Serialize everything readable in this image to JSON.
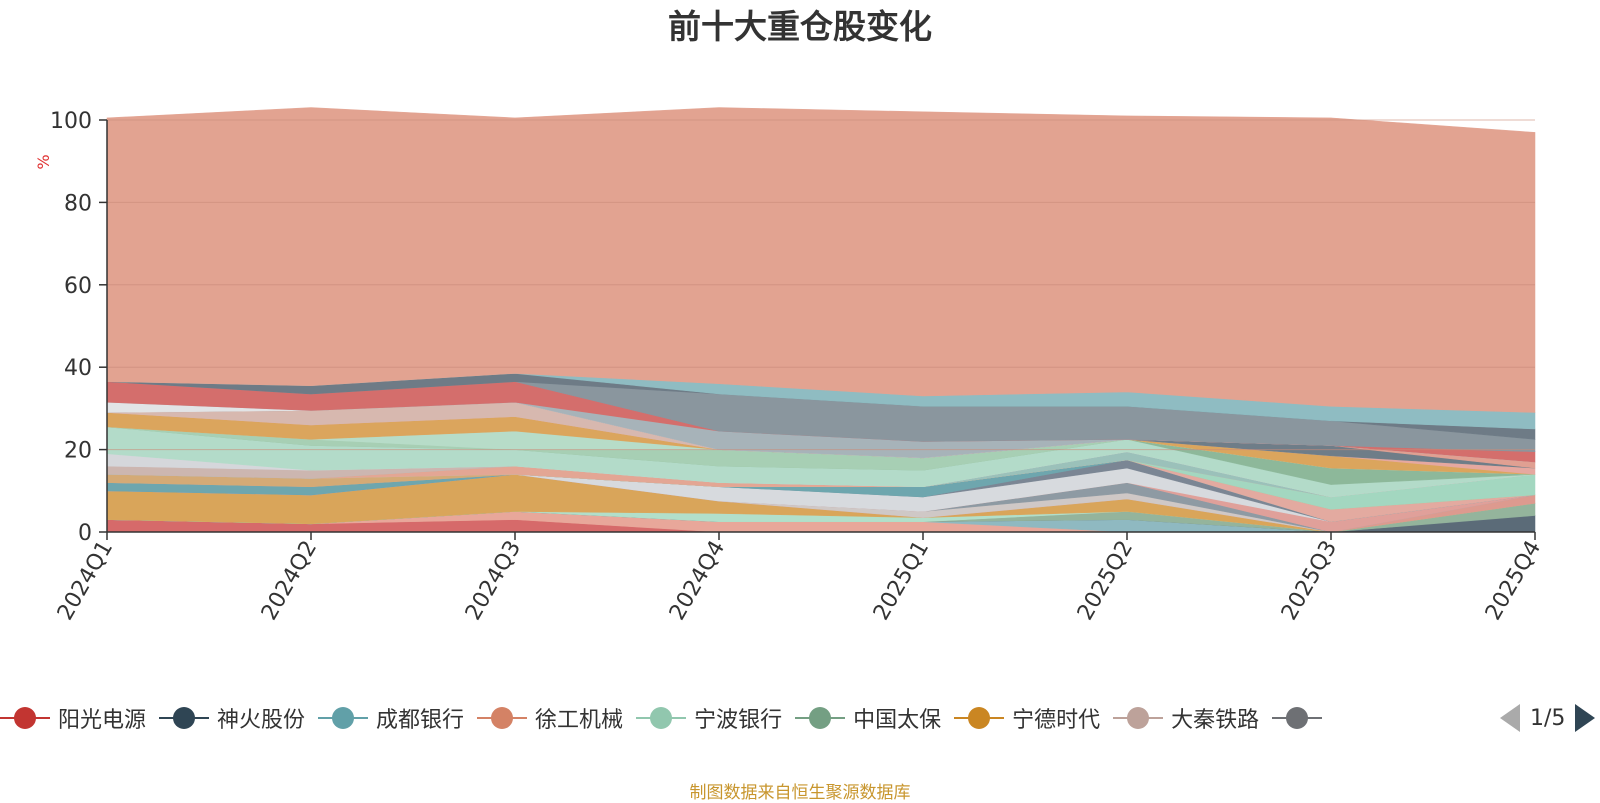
{
  "title": "前十大重仓股变化",
  "source_note": "制图数据来自恒生聚源数据库",
  "pager": {
    "text": "1/5"
  },
  "legend_items": [
    {
      "label": "阳光电源",
      "color": "#c23531"
    },
    {
      "label": "神火股份",
      "color": "#2f4554"
    },
    {
      "label": "成都银行",
      "color": "#61a0a8"
    },
    {
      "label": "徐工机械",
      "color": "#d48265"
    },
    {
      "label": "宁波银行",
      "color": "#91c7ae"
    },
    {
      "label": "中国太保",
      "color": "#749f83"
    },
    {
      "label": "宁德时代",
      "color": "#ca8622"
    },
    {
      "label": "大秦铁路",
      "color": "#bda29a"
    },
    {
      "label": "",
      "color": "#6e7074"
    }
  ],
  "chart_data": {
    "type": "area",
    "title": "前十大重仓股变化",
    "ylabel": "%",
    "ylim": [
      0,
      100
    ],
    "yticks": [
      0,
      20,
      40,
      60,
      80,
      100
    ],
    "x": [
      "2024Q1",
      "2024Q2",
      "2024Q3",
      "2024Q4",
      "2025Q1",
      "2025Q2",
      "2025Q3",
      "2025Q4"
    ],
    "grid": true,
    "legend_position": "bottom",
    "series": [
      {
        "name": "",
        "color": "#d66a6a",
        "values": [
          3.0,
          2.0,
          3.0,
          0.0,
          0.0,
          0.0,
          0.0,
          0.0
        ]
      },
      {
        "name": "",
        "color": "#e8a79a",
        "values": [
          0.0,
          0.0,
          2.0,
          2.5,
          2.5,
          0.0,
          0.0,
          0.0
        ]
      },
      {
        "name": "",
        "color": "#8fb9c1",
        "values": [
          0.0,
          0.0,
          0.0,
          0.0,
          0.0,
          3.0,
          0.0,
          0.0
        ]
      },
      {
        "name": "",
        "color": "#5b6b78",
        "values": [
          0.0,
          0.0,
          0.0,
          0.0,
          0.0,
          0.0,
          0.0,
          4.0
        ]
      },
      {
        "name": "",
        "color": "#94b49c",
        "values": [
          0.0,
          0.0,
          0.0,
          0.0,
          0.0,
          2.0,
          0.0,
          3.0
        ]
      },
      {
        "name": "",
        "color": "#b2dfca",
        "values": [
          0.0,
          0.0,
          0.0,
          2.0,
          1.0,
          0.0,
          0.0,
          0.0
        ]
      },
      {
        "name": "",
        "color": "#d9a55a",
        "values": [
          7.0,
          7.0,
          9.0,
          3.0,
          0.0,
          3.0,
          0.0,
          0.0
        ]
      },
      {
        "name": "",
        "color": "#dd9a8f",
        "values": [
          0.0,
          0.0,
          0.0,
          0.0,
          0.0,
          0.0,
          0.0,
          2.0
        ]
      },
      {
        "name": "",
        "color": "#cfc8c6",
        "values": [
          0.0,
          0.0,
          0.0,
          0.0,
          1.5,
          1.5,
          0.0,
          0.0
        ]
      },
      {
        "name": "",
        "color": "#8e9aa3",
        "values": [
          0.0,
          0.0,
          0.0,
          0.0,
          0.0,
          2.5,
          0.0,
          0.0
        ]
      },
      {
        "name": "",
        "color": "#e0a09a",
        "values": [
          0.0,
          0.0,
          0.0,
          0.0,
          0.0,
          0.0,
          2.5,
          0.0
        ]
      },
      {
        "name": "",
        "color": "#d7dade",
        "values": [
          0.0,
          0.0,
          0.0,
          3.5,
          3.5,
          3.5,
          0.0,
          0.0
        ]
      },
      {
        "name": "",
        "color": "#7b8694",
        "values": [
          0.0,
          0.0,
          0.0,
          0.0,
          0.0,
          2.0,
          0.0,
          0.0
        ]
      },
      {
        "name": "",
        "color": "#6ea6ae",
        "values": [
          2.0,
          2.0,
          0.0,
          0.0,
          2.5,
          0.0,
          0.0,
          0.0
        ]
      },
      {
        "name": "",
        "color": "#e3aaa0",
        "values": [
          0.0,
          0.0,
          0.0,
          0.0,
          0.0,
          0.0,
          3.0,
          0.0
        ]
      },
      {
        "name": "",
        "color": "#d4aa76",
        "values": [
          2.0,
          2.0,
          0.0,
          0.0,
          0.0,
          0.0,
          0.0,
          0.0
        ]
      },
      {
        "name": "",
        "color": "#a3d7c0",
        "values": [
          0.0,
          0.0,
          0.0,
          0.0,
          0.0,
          0.0,
          3.0,
          5.0
        ]
      },
      {
        "name": "",
        "color": "#e3a694",
        "values": [
          0.0,
          0.0,
          2.0,
          1.0,
          0.0,
          0.0,
          0.0,
          0.0
        ]
      },
      {
        "name": "",
        "color": "#9bc1ba",
        "values": [
          0.0,
          0.0,
          0.0,
          0.0,
          0.0,
          2.0,
          0.0,
          0.0
        ]
      },
      {
        "name": "",
        "color": "#ccb6b0",
        "values": [
          2.0,
          2.0,
          0.0,
          0.0,
          0.0,
          0.0,
          0.0,
          0.0
        ]
      },
      {
        "name": "",
        "color": "#d5d7db",
        "values": [
          3.0,
          0.0,
          0.0,
          0.0,
          0.0,
          0.0,
          0.0,
          0.0
        ]
      },
      {
        "name": "",
        "color": "#b3dbc9",
        "values": [
          6.5,
          6.0,
          4.0,
          4.0,
          4.0,
          3.0,
          3.0,
          0.0
        ]
      },
      {
        "name": "",
        "color": "#8db89a",
        "values": [
          0.0,
          0.0,
          0.0,
          0.0,
          0.0,
          0.0,
          4.0,
          0.0
        ]
      },
      {
        "name": "",
        "color": "#a7cfb4",
        "values": [
          0.0,
          1.5,
          0.0,
          4.0,
          3.0,
          0.0,
          0.0,
          0.0
        ]
      },
      {
        "name": "",
        "color": "#b7dcc8",
        "values": [
          0.0,
          0.0,
          4.5,
          0.0,
          0.0,
          0.0,
          0.0,
          0.0
        ]
      },
      {
        "name": "",
        "color": "#dba55d",
        "values": [
          3.5,
          3.5,
          3.5,
          0.0,
          0.0,
          0.0,
          3.0,
          0.0
        ]
      },
      {
        "name": "",
        "color": "#e6a8a0",
        "values": [
          0.0,
          0.0,
          0.0,
          0.0,
          0.0,
          0.0,
          0.0,
          1.5
        ]
      },
      {
        "name": "",
        "color": "#d7b8af",
        "values": [
          0.0,
          3.5,
          3.5,
          0.0,
          0.0,
          0.0,
          0.0,
          0.0
        ]
      },
      {
        "name": "",
        "color": "#6f7d88",
        "values": [
          0.0,
          0.0,
          0.0,
          0.0,
          0.0,
          0.0,
          2.5,
          0.0
        ]
      },
      {
        "name": "",
        "color": "#e0a092",
        "values": [
          0.0,
          0.0,
          0.0,
          0.0,
          0.0,
          0.0,
          0.0,
          1.5
        ]
      },
      {
        "name": "",
        "color": "#e2e4e6",
        "values": [
          2.5,
          0.0,
          0.0,
          0.0,
          0.0,
          0.0,
          0.0,
          0.0
        ]
      },
      {
        "name": "",
        "color": "#a7b3b9",
        "values": [
          0.0,
          0.0,
          0.0,
          4.5,
          4.0,
          0.0,
          0.0,
          0.0
        ]
      },
      {
        "name": "",
        "color": "#d46e6c",
        "values": [
          5.0,
          4.0,
          5.0,
          0.0,
          0.0,
          0.0,
          0.0,
          2.5
        ]
      },
      {
        "name": "",
        "color": "#8a969e",
        "values": [
          0.0,
          0.0,
          0.0,
          9.0,
          8.5,
          8.0,
          6.0,
          3.0
        ]
      },
      {
        "name": "",
        "color": "#6e7b86",
        "values": [
          0.0,
          2.0,
          2.0,
          0.0,
          0.0,
          0.0,
          0.0,
          2.5
        ]
      },
      {
        "name": "",
        "color": "#8fbcc2",
        "values": [
          0.0,
          0.0,
          0.0,
          2.5,
          2.5,
          3.5,
          3.5,
          4.0
        ]
      },
      {
        "name": "",
        "color": "#e2a391",
        "values": [
          64.0,
          67.5,
          62.0,
          67.0,
          69.0,
          67.0,
          70.0,
          68.0
        ]
      }
    ]
  }
}
